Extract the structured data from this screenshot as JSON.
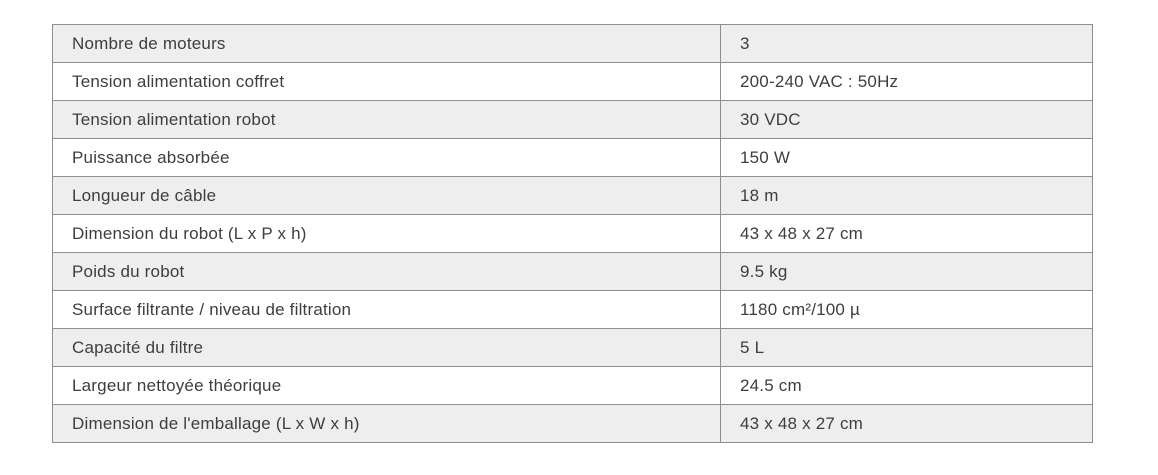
{
  "specs_table": {
    "rows": [
      {
        "label": "Nombre de moteurs",
        "value": "3"
      },
      {
        "label": "Tension alimentation coffret",
        "value": "200-240 VAC : 50Hz"
      },
      {
        "label": "Tension alimentation robot",
        "value": "30 VDC"
      },
      {
        "label": "Puissance absorbée",
        "value": "150 W"
      },
      {
        "label": "Longueur de câble",
        "value": "18 m"
      },
      {
        "label": "Dimension du robot (L x P x h)",
        "value": "43 x 48 x 27 cm"
      },
      {
        "label": "Poids du robot",
        "value": "9.5 kg"
      },
      {
        "label": "Surface filtrante / niveau de filtration",
        "value": "1180 cm²/100 µ"
      },
      {
        "label": "Capacité du filtre",
        "value": "5 L"
      },
      {
        "label": "Largeur nettoyée théorique",
        "value": "24.5 cm"
      },
      {
        "label": "Dimension de l'emballage (L x W x h)",
        "value": "43 x 48 x 27 cm"
      }
    ],
    "colors": {
      "stripe_background": "#eeeeee",
      "row_background": "#ffffff",
      "border": "#8e8e8e",
      "text": "#3e3e3e"
    }
  }
}
